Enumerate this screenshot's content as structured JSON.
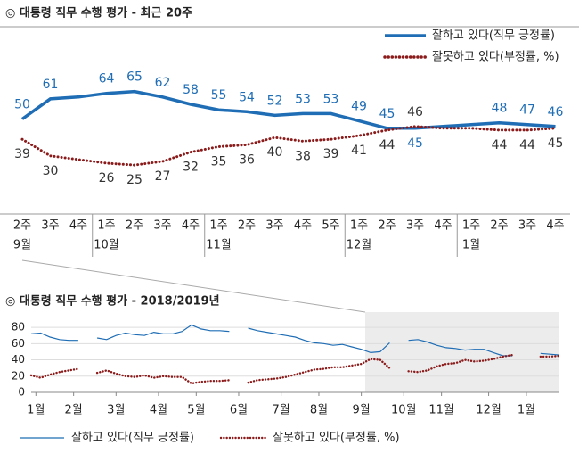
{
  "chart_data": [
    {
      "type": "line",
      "title": "◎ 대통령 직무 수행 평가 - 최근 20주",
      "categories": [
        "2주",
        "3주",
        "4주",
        "1주",
        "2주",
        "3주",
        "4주",
        "1주",
        "2주",
        "3주",
        "4주",
        "5주",
        "1주",
        "2주",
        "3주",
        "4주",
        "1주",
        "2주",
        "3주",
        "4주"
      ],
      "category_groups": [
        "9월",
        null,
        null,
        "10월",
        null,
        null,
        null,
        "11월",
        null,
        null,
        null,
        null,
        "12월",
        null,
        null,
        null,
        "1월",
        null,
        null,
        null
      ],
      "ylim": [
        10,
        75
      ],
      "legend": "top-right",
      "series": [
        {
          "name": "잘하고 있다(직무 긍정률)",
          "color": "#1f6db5",
          "style": "solid",
          "values": [
            50,
            61,
            62,
            64,
            65,
            62,
            58,
            55,
            54,
            52,
            53,
            53,
            49,
            45,
            45,
            46,
            47,
            48,
            47,
            46
          ],
          "value_labels": [
            "50",
            "61",
            null,
            "64",
            "65",
            "62",
            "58",
            "55",
            "54",
            "52",
            "53",
            "53",
            "49",
            "45",
            "45",
            null,
            null,
            "48",
            "47",
            "46"
          ]
        },
        {
          "name": "잘못하고 있다(부정률, %)",
          "color": "#8b1a1a",
          "style": "dotted",
          "values": [
            39,
            30,
            28,
            26,
            25,
            27,
            32,
            35,
            36,
            40,
            38,
            39,
            41,
            44,
            46,
            45,
            45,
            44,
            44,
            45
          ],
          "value_labels": [
            "39",
            "30",
            null,
            "26",
            "25",
            "27",
            "32",
            "35",
            "36",
            "40",
            "38",
            "39",
            "41",
            "44",
            "46",
            null,
            null,
            "44",
            "44",
            "45"
          ]
        }
      ]
    },
    {
      "type": "line",
      "title": "◎ 대통령 직무 수행 평가 - 2018/2019년",
      "x": [
        0,
        1,
        2,
        3,
        4,
        5,
        6,
        7,
        8,
        9,
        10,
        11,
        12,
        13,
        14,
        15,
        16,
        17,
        18,
        19,
        20,
        21,
        22,
        23,
        24,
        25,
        26,
        27,
        28,
        29,
        30,
        31,
        32,
        33,
        34,
        35,
        36,
        37,
        38,
        39,
        40,
        41,
        42,
        43,
        44,
        45,
        46,
        47,
        48,
        49,
        50,
        51,
        52,
        53,
        54,
        55,
        56
      ],
      "xlim": [
        0,
        56
      ],
      "xticks": [
        {
          "value": 0.5,
          "label": "1월"
        },
        {
          "value": 4.5,
          "label": "2월"
        },
        {
          "value": 9,
          "label": "3월"
        },
        {
          "value": 13.5,
          "label": "4월"
        },
        {
          "value": 17.5,
          "label": "5월"
        },
        {
          "value": 22,
          "label": "6월"
        },
        {
          "value": 26.5,
          "label": "7월"
        },
        {
          "value": 30.5,
          "label": "8월"
        },
        {
          "value": 35,
          "label": "9월"
        },
        {
          "value": 39.5,
          "label": "10월"
        },
        {
          "value": 43.5,
          "label": "11월"
        },
        {
          "value": 48.5,
          "label": "12월"
        },
        {
          "value": 52.5,
          "label": "1월"
        }
      ],
      "ylim": [
        0,
        90
      ],
      "yticks": [
        0,
        20,
        40,
        60,
        80
      ],
      "grid": true,
      "legend": "bottom",
      "series": [
        {
          "name": "잘하고 있다(직무 긍정률)",
          "color": "#1f6db5",
          "style": "solid",
          "values": [
            72,
            73,
            68,
            65,
            64,
            64,
            null,
            67,
            65,
            70,
            73,
            71,
            70,
            74,
            72,
            72,
            75,
            83,
            78,
            76,
            76,
            75,
            null,
            79,
            76,
            74,
            72,
            70,
            68,
            64,
            61,
            60,
            58,
            59,
            56,
            53,
            49,
            50,
            61,
            null,
            64,
            65,
            62,
            58,
            55,
            54,
            52,
            53,
            53,
            49,
            45,
            45,
            null,
            null,
            48,
            47,
            46
          ]
        },
        {
          "name": "잘못하고 있다(부정률, %)",
          "color": "#8b1a1a",
          "style": "dotted",
          "values": [
            21,
            18,
            22,
            25,
            27,
            29,
            null,
            24,
            27,
            23,
            20,
            19,
            21,
            18,
            20,
            19,
            19,
            11,
            13,
            14,
            14,
            15,
            null,
            12,
            15,
            16,
            17,
            19,
            22,
            25,
            28,
            29,
            31,
            31,
            33,
            35,
            41,
            40,
            30,
            null,
            26,
            25,
            27,
            32,
            35,
            36,
            40,
            38,
            39,
            41,
            44,
            46,
            null,
            null,
            44,
            44,
            45
          ]
        }
      ]
    }
  ]
}
